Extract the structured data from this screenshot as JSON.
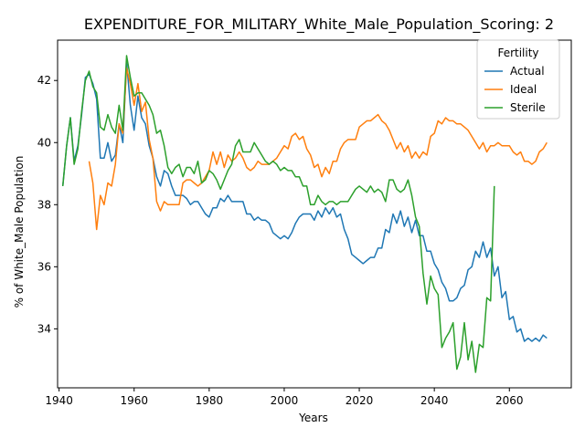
{
  "chart_data": {
    "type": "line",
    "title": "EXPENDITURE_FOR_MILITARY_White_Male_Population_Scoring: 2",
    "xlabel": "Years",
    "ylabel": "% of White_Male Population",
    "xlim": [
      1939.6,
      2076.5
    ],
    "ylim": [
      32.1,
      43.3
    ],
    "xticks": [
      1940,
      1960,
      1980,
      2000,
      2020,
      2040,
      2060
    ],
    "yticks": [
      34,
      36,
      38,
      40,
      42
    ],
    "grid": false,
    "legend": {
      "title": "Fertility",
      "placement": "top-right"
    },
    "series": [
      {
        "name": "Actual",
        "color": "#1f77b4",
        "x": [
          1941,
          1942,
          1943,
          1944,
          1945,
          1946,
          1947,
          1948,
          1949,
          1950,
          1951,
          1952,
          1953,
          1954,
          1955,
          1956,
          1957,
          1958,
          1959,
          1960,
          1961,
          1962,
          1963,
          1964,
          1965,
          1966,
          1967,
          1968,
          1969,
          1970,
          1971,
          1972,
          1973,
          1974,
          1975,
          1976,
          1977,
          1978,
          1979,
          1980,
          1981,
          1982,
          1983,
          1984,
          1985,
          1986,
          1987,
          1988,
          1989,
          1990,
          1991,
          1992,
          1993,
          1994,
          1995,
          1996,
          1997,
          1998,
          1999,
          2000,
          2001,
          2002,
          2003,
          2004,
          2005,
          2006,
          2007,
          2008,
          2009,
          2010,
          2011,
          2012,
          2013,
          2014,
          2015,
          2016,
          2017,
          2018,
          2019,
          2020,
          2021,
          2022,
          2023,
          2024,
          2025,
          2026,
          2027,
          2028,
          2029,
          2030,
          2031,
          2032,
          2033,
          2034,
          2035,
          2036,
          2037,
          2038,
          2039,
          2040,
          2041,
          2042,
          2043,
          2044,
          2045,
          2046,
          2047,
          2048,
          2049,
          2050,
          2051,
          2052,
          2053,
          2054,
          2055,
          2056,
          2057,
          2058,
          2059,
          2060,
          2061,
          2062,
          2063,
          2064,
          2065,
          2066,
          2067,
          2068,
          2069,
          2070
        ],
        "values": [
          38.6,
          39.9,
          40.8,
          39.4,
          39.9,
          40.9,
          42.1,
          42.2,
          41.9,
          41.4,
          39.5,
          39.5,
          40.0,
          39.4,
          39.6,
          40.6,
          40.0,
          42.6,
          41.2,
          40.4,
          41.5,
          40.8,
          40.6,
          39.9,
          39.5,
          38.9,
          38.6,
          39.1,
          39.0,
          38.6,
          38.3,
          38.3,
          38.3,
          38.2,
          38.0,
          38.1,
          38.1,
          37.9,
          37.7,
          37.6,
          37.9,
          37.9,
          38.2,
          38.1,
          38.3,
          38.1,
          38.1,
          38.1,
          38.1,
          37.7,
          37.7,
          37.5,
          37.6,
          37.5,
          37.5,
          37.4,
          37.1,
          37.0,
          36.9,
          37.0,
          36.9,
          37.1,
          37.4,
          37.6,
          37.7,
          37.7,
          37.7,
          37.5,
          37.8,
          37.6,
          37.9,
          37.7,
          37.9,
          37.6,
          37.7,
          37.2,
          36.9,
          36.4,
          36.3,
          36.2,
          36.1,
          36.2,
          36.3,
          36.3,
          36.6,
          36.6,
          37.2,
          37.1,
          37.7,
          37.4,
          37.8,
          37.3,
          37.6,
          37.1,
          37.5,
          37.0,
          37.0,
          36.5,
          36.5,
          36.1,
          35.9,
          35.5,
          35.3,
          34.9,
          34.9,
          35.0,
          35.3,
          35.4,
          35.9,
          36.0,
          36.5,
          36.3,
          36.8,
          36.3,
          36.6,
          35.7,
          36.0,
          35.0,
          35.2,
          34.3,
          34.4,
          33.9,
          34.0,
          33.6,
          33.7,
          33.6,
          33.7,
          33.6,
          33.8,
          33.7
        ]
      },
      {
        "name": "Ideal",
        "color": "#ff7f0e",
        "x": [
          1948,
          1949,
          1950,
          1951,
          1952,
          1953,
          1954,
          1955,
          1956,
          1957,
          1958,
          1959,
          1960,
          1961,
          1962,
          1963,
          1964,
          1965,
          1966,
          1967,
          1968,
          1969,
          1970,
          1971,
          1972,
          1973,
          1974,
          1975,
          1976,
          1977,
          1978,
          1979,
          1980,
          1981,
          1982,
          1983,
          1984,
          1985,
          1986,
          1987,
          1988,
          1989,
          1990,
          1991,
          1992,
          1993,
          1994,
          1995,
          1996,
          1997,
          1998,
          1999,
          2000,
          2001,
          2002,
          2003,
          2004,
          2005,
          2006,
          2007,
          2008,
          2009,
          2010,
          2011,
          2012,
          2013,
          2014,
          2015,
          2016,
          2017,
          2018,
          2019,
          2020,
          2021,
          2022,
          2023,
          2024,
          2025,
          2026,
          2027,
          2028,
          2029,
          2030,
          2031,
          2032,
          2033,
          2034,
          2035,
          2036,
          2037,
          2038,
          2039,
          2040,
          2041,
          2042,
          2043,
          2044,
          2045,
          2046,
          2047,
          2048,
          2049,
          2050,
          2051,
          2052,
          2053,
          2054,
          2055,
          2056,
          2057,
          2058,
          2059,
          2060,
          2061,
          2062,
          2063,
          2064,
          2065,
          2066,
          2067,
          2068,
          2069,
          2070
        ],
        "values": [
          39.4,
          38.7,
          37.2,
          38.3,
          38.0,
          38.7,
          38.6,
          39.3,
          40.6,
          40.3,
          42.4,
          41.9,
          41.2,
          41.9,
          41.0,
          41.3,
          40.1,
          39.5,
          38.1,
          37.8,
          38.1,
          38.0,
          38.0,
          38.0,
          38.0,
          38.7,
          38.8,
          38.8,
          38.7,
          38.6,
          38.7,
          38.9,
          39.1,
          39.7,
          39.3,
          39.7,
          39.2,
          39.6,
          39.4,
          39.5,
          39.7,
          39.5,
          39.2,
          39.1,
          39.2,
          39.4,
          39.3,
          39.3,
          39.3,
          39.4,
          39.5,
          39.7,
          39.9,
          39.8,
          40.2,
          40.3,
          40.1,
          40.2,
          39.8,
          39.6,
          39.2,
          39.3,
          38.9,
          39.2,
          39.0,
          39.4,
          39.4,
          39.8,
          40.0,
          40.1,
          40.1,
          40.1,
          40.5,
          40.6,
          40.7,
          40.7,
          40.8,
          40.9,
          40.7,
          40.6,
          40.4,
          40.1,
          39.8,
          40.0,
          39.7,
          39.9,
          39.5,
          39.7,
          39.5,
          39.7,
          39.6,
          40.2,
          40.3,
          40.7,
          40.6,
          40.8,
          40.7,
          40.7,
          40.6,
          40.6,
          40.5,
          40.4,
          40.2,
          40.0,
          39.8,
          40.0,
          39.7,
          39.9,
          39.9,
          40.0,
          39.9,
          39.9,
          39.9,
          39.7,
          39.6,
          39.7,
          39.4,
          39.4,
          39.3,
          39.4,
          39.7,
          39.8,
          40.0
        ]
      },
      {
        "name": "Sterile",
        "color": "#2ca02c",
        "x": [
          1941,
          1942,
          1943,
          1944,
          1945,
          1946,
          1947,
          1948,
          1949,
          1950,
          1951,
          1952,
          1953,
          1954,
          1955,
          1956,
          1957,
          1958,
          1959,
          1960,
          1961,
          1962,
          1963,
          1964,
          1965,
          1966,
          1967,
          1968,
          1969,
          1970,
          1971,
          1972,
          1973,
          1974,
          1975,
          1976,
          1977,
          1978,
          1979,
          1980,
          1981,
          1982,
          1983,
          1984,
          1985,
          1986,
          1987,
          1988,
          1989,
          1990,
          1991,
          1992,
          1993,
          1994,
          1995,
          1996,
          1997,
          1998,
          1999,
          2000,
          2001,
          2002,
          2003,
          2004,
          2005,
          2006,
          2007,
          2008,
          2009,
          2010,
          2011,
          2012,
          2013,
          2014,
          2015,
          2016,
          2017,
          2018,
          2019,
          2020,
          2021,
          2022,
          2023,
          2024,
          2025,
          2026,
          2027,
          2028,
          2029,
          2030,
          2031,
          2032,
          2033,
          2034,
          2035,
          2036,
          2037,
          2038,
          2039,
          2040,
          2041,
          2042,
          2043,
          2044,
          2045,
          2046,
          2047,
          2048,
          2049,
          2050,
          2051,
          2052,
          2053,
          2054,
          2055,
          2056
        ],
        "values": [
          38.6,
          39.9,
          40.8,
          39.3,
          39.8,
          41.0,
          42.0,
          42.3,
          41.8,
          41.6,
          40.5,
          40.4,
          40.9,
          40.5,
          40.3,
          41.2,
          40.4,
          42.8,
          42.1,
          41.5,
          41.6,
          41.6,
          41.4,
          41.2,
          40.9,
          40.3,
          40.4,
          39.9,
          39.2,
          39.0,
          39.2,
          39.3,
          38.9,
          39.2,
          39.2,
          39.0,
          39.4,
          38.7,
          38.8,
          39.1,
          39.0,
          38.8,
          38.5,
          38.8,
          39.1,
          39.3,
          39.9,
          40.1,
          39.7,
          39.7,
          39.7,
          40.0,
          39.8,
          39.6,
          39.4,
          39.3,
          39.4,
          39.3,
          39.1,
          39.2,
          39.1,
          39.1,
          38.9,
          38.9,
          38.6,
          38.6,
          38.0,
          38.0,
          38.3,
          38.1,
          38.0,
          38.1,
          38.1,
          38.0,
          38.1,
          38.1,
          38.1,
          38.3,
          38.5,
          38.6,
          38.5,
          38.4,
          38.6,
          38.4,
          38.5,
          38.4,
          38.1,
          38.8,
          38.8,
          38.5,
          38.4,
          38.5,
          38.8,
          38.3,
          37.6,
          37.3,
          35.8,
          34.8,
          35.7,
          35.3,
          35.1,
          33.4,
          33.7,
          33.9,
          34.2,
          32.7,
          33.1,
          34.2,
          33.0,
          33.6,
          32.6,
          33.5,
          33.4,
          35.0,
          34.9,
          38.6
        ]
      }
    ]
  }
}
